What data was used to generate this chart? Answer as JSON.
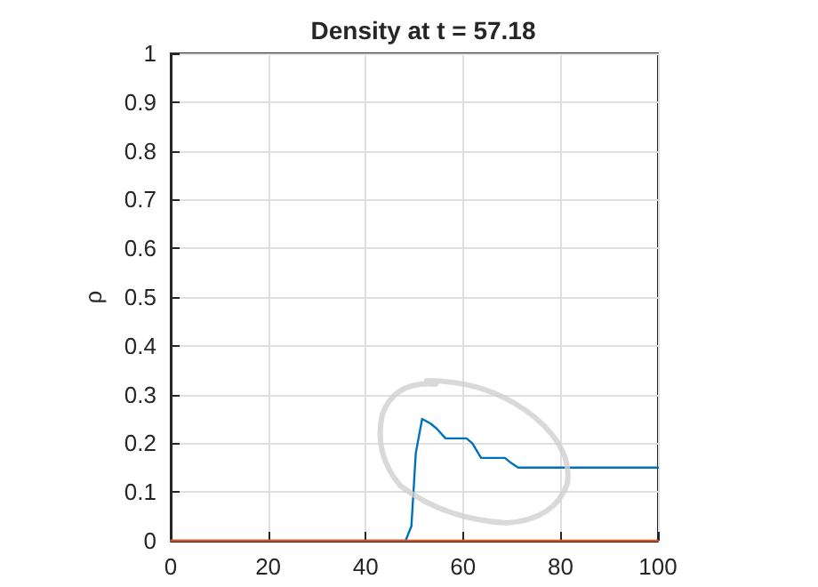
{
  "chart_data": {
    "type": "line",
    "title": "Density at t = 57.18",
    "ylabel": "ρ",
    "xlim": [
      0,
      100
    ],
    "ylim": [
      0,
      1
    ],
    "xticks": [
      0,
      20,
      40,
      60,
      80,
      100
    ],
    "yticks": [
      0,
      0.1,
      0.2,
      0.3,
      0.4,
      0.5,
      0.6,
      0.7,
      0.8,
      0.9,
      1
    ],
    "grid": true,
    "series": [
      {
        "color": "#0072bd",
        "x": [
          0,
          48.2,
          49.4,
          50.3,
          51.6,
          53.4,
          54.6,
          56.4,
          58.2,
          60.7,
          61.9,
          63.7,
          66.2,
          68.6,
          69.8,
          71.3,
          73.5,
          76.5,
          79.5,
          84.4,
          100
        ],
        "values": [
          0,
          0,
          0.03,
          0.18,
          0.25,
          0.24,
          0.23,
          0.21,
          0.21,
          0.21,
          0.2,
          0.17,
          0.17,
          0.17,
          0.16,
          0.15,
          0.15,
          0.15,
          0.15,
          0.15,
          0.15
        ]
      },
      {
        "color": "#d95319",
        "x": [
          0,
          100
        ],
        "values": [
          0,
          0
        ]
      }
    ]
  }
}
